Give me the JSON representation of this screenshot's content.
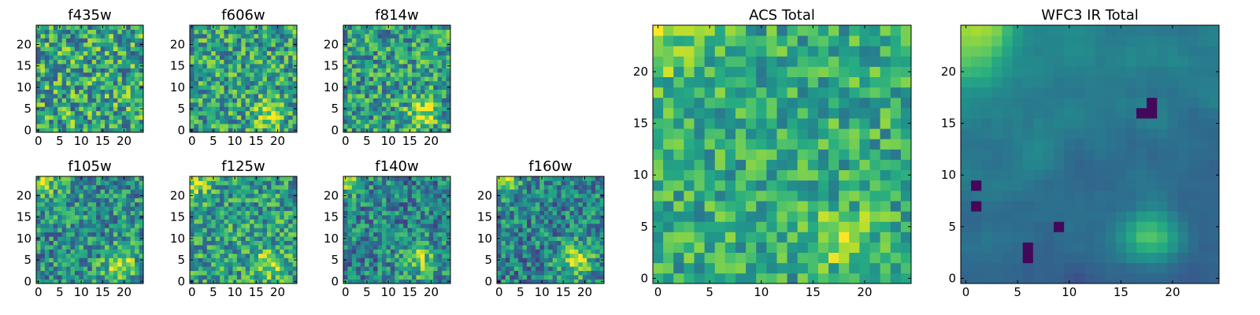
{
  "chart_data": [
    {
      "type": "heatmap",
      "title": "f435w",
      "xticks": [
        "0",
        "5",
        "10",
        "15",
        "20"
      ],
      "yticks": [
        "0",
        "5",
        "10",
        "15",
        "20"
      ],
      "grid_size": [
        25,
        25
      ],
      "xlim": [
        -0.5,
        24.5
      ],
      "ylim": [
        -0.5,
        24.5
      ],
      "colormap": "viridis",
      "bright_peak": null,
      "peak_spread": 0.0,
      "peak_amp": 0.0,
      "noise": 0.34,
      "base": 0.6,
      "gradient": 0.0,
      "smooth": false,
      "corner": 0.0,
      "seed": 11
    },
    {
      "type": "heatmap",
      "title": "f606w",
      "xticks": [
        "0",
        "5",
        "10",
        "15",
        "20"
      ],
      "yticks": [
        "0",
        "5",
        "10",
        "15",
        "20"
      ],
      "grid_size": [
        25,
        25
      ],
      "xlim": [
        -0.5,
        24.5
      ],
      "ylim": [
        -0.5,
        24.5
      ],
      "colormap": "viridis",
      "bright_peak": [
        18,
        4
      ],
      "peak_spread": 2.2,
      "peak_amp": 0.35,
      "noise": 0.3,
      "base": 0.58,
      "gradient": 0.0,
      "smooth": false,
      "corner": 0.0,
      "seed": 23
    },
    {
      "type": "heatmap",
      "title": "f814w",
      "xticks": [
        "0",
        "5",
        "10",
        "15",
        "20"
      ],
      "yticks": [
        "0",
        "5",
        "10",
        "15",
        "20"
      ],
      "grid_size": [
        25,
        25
      ],
      "xlim": [
        -0.5,
        24.5
      ],
      "ylim": [
        -0.5,
        24.5
      ],
      "colormap": "viridis",
      "bright_peak": [
        18,
        4
      ],
      "peak_spread": 2.4,
      "peak_amp": 0.35,
      "noise": 0.3,
      "base": 0.56,
      "gradient": 0.0,
      "smooth": false,
      "corner": 0.0,
      "seed": 37
    },
    {
      "type": "heatmap",
      "title": "f105w",
      "xticks": [
        "0",
        "5",
        "10",
        "15",
        "20"
      ],
      "yticks": [
        "0",
        "5",
        "10",
        "15",
        "20"
      ],
      "grid_size": [
        25,
        25
      ],
      "xlim": [
        -0.5,
        24.5
      ],
      "ylim": [
        -0.5,
        24.5
      ],
      "colormap": "viridis",
      "bright_peak": [
        19,
        4
      ],
      "peak_spread": 2.6,
      "peak_amp": 0.38,
      "noise": 0.28,
      "base": 0.5,
      "gradient": 0.0,
      "smooth": false,
      "corner": 0.35,
      "seed": 41
    },
    {
      "type": "heatmap",
      "title": "f125w",
      "xticks": [
        "0",
        "5",
        "10",
        "15",
        "20"
      ],
      "yticks": [
        "0",
        "5",
        "10",
        "15",
        "20"
      ],
      "grid_size": [
        25,
        25
      ],
      "xlim": [
        -0.5,
        24.5
      ],
      "ylim": [
        -0.5,
        24.5
      ],
      "colormap": "viridis",
      "bright_peak": [
        18,
        4
      ],
      "peak_spread": 2.6,
      "peak_amp": 0.35,
      "noise": 0.28,
      "base": 0.56,
      "gradient": 0.0,
      "smooth": false,
      "corner": 0.3,
      "seed": 53
    },
    {
      "type": "heatmap",
      "title": "f140w",
      "xticks": [
        "0",
        "5",
        "10",
        "15",
        "20"
      ],
      "yticks": [
        "0",
        "5",
        "10",
        "15",
        "20"
      ],
      "grid_size": [
        25,
        25
      ],
      "xlim": [
        -0.5,
        24.5
      ],
      "ylim": [
        -0.5,
        24.5
      ],
      "colormap": "viridis",
      "bright_peak": [
        17,
        5
      ],
      "peak_spread": 3.0,
      "peak_amp": 0.35,
      "noise": 0.26,
      "base": 0.45,
      "gradient": 0.0,
      "smooth": false,
      "corner": 0.35,
      "seed": 67
    },
    {
      "type": "heatmap",
      "title": "f160w",
      "xticks": [
        "0",
        "5",
        "10",
        "15",
        "20"
      ],
      "yticks": [
        "0",
        "5",
        "10",
        "15",
        "20"
      ],
      "grid_size": [
        25,
        25
      ],
      "xlim": [
        -0.5,
        24.5
      ],
      "ylim": [
        -0.5,
        24.5
      ],
      "colormap": "viridis",
      "bright_peak": [
        18,
        5
      ],
      "peak_spread": 3.0,
      "peak_amp": 0.35,
      "noise": 0.26,
      "base": 0.45,
      "gradient": 0.0,
      "smooth": false,
      "corner": 0.4,
      "seed": 79
    },
    {
      "type": "heatmap",
      "title": "ACS Total",
      "xticks": [
        "0",
        "5",
        "10",
        "15",
        "20"
      ],
      "yticks": [
        "0",
        "5",
        "10",
        "15",
        "20"
      ],
      "grid_size": [
        25,
        25
      ],
      "xlim": [
        -0.5,
        24.5
      ],
      "ylim": [
        -0.5,
        24.5
      ],
      "colormap": "viridis",
      "bright_peak": [
        18,
        4
      ],
      "peak_spread": 1.6,
      "peak_amp": 0.4,
      "noise": 0.22,
      "base": 0.62,
      "gradient": 0.0,
      "smooth": false,
      "corner": 0.25,
      "seed": 97
    },
    {
      "type": "heatmap",
      "title": "WFC3 IR Total",
      "xticks": [
        "0",
        "5",
        "10",
        "15",
        "20"
      ],
      "yticks": [
        "0",
        "5",
        "10",
        "15",
        "20"
      ],
      "grid_size": [
        25,
        25
      ],
      "xlim": [
        -0.5,
        24.5
      ],
      "ylim": [
        -0.5,
        24.5
      ],
      "colormap": "viridis",
      "bright_peak": [
        18,
        4
      ],
      "peak_spread": 1.8,
      "peak_amp": 0.4,
      "noise": 0.1,
      "base": 0.42,
      "gradient": 0.22,
      "smooth": true,
      "corner": 0.45,
      "seed": 103,
      "dark_spots": [
        [
          18,
          16
        ],
        [
          18,
          17
        ],
        [
          17,
          16
        ],
        [
          6,
          3
        ],
        [
          6,
          2
        ],
        [
          9,
          5
        ],
        [
          1,
          9
        ],
        [
          1,
          7
        ]
      ]
    }
  ]
}
